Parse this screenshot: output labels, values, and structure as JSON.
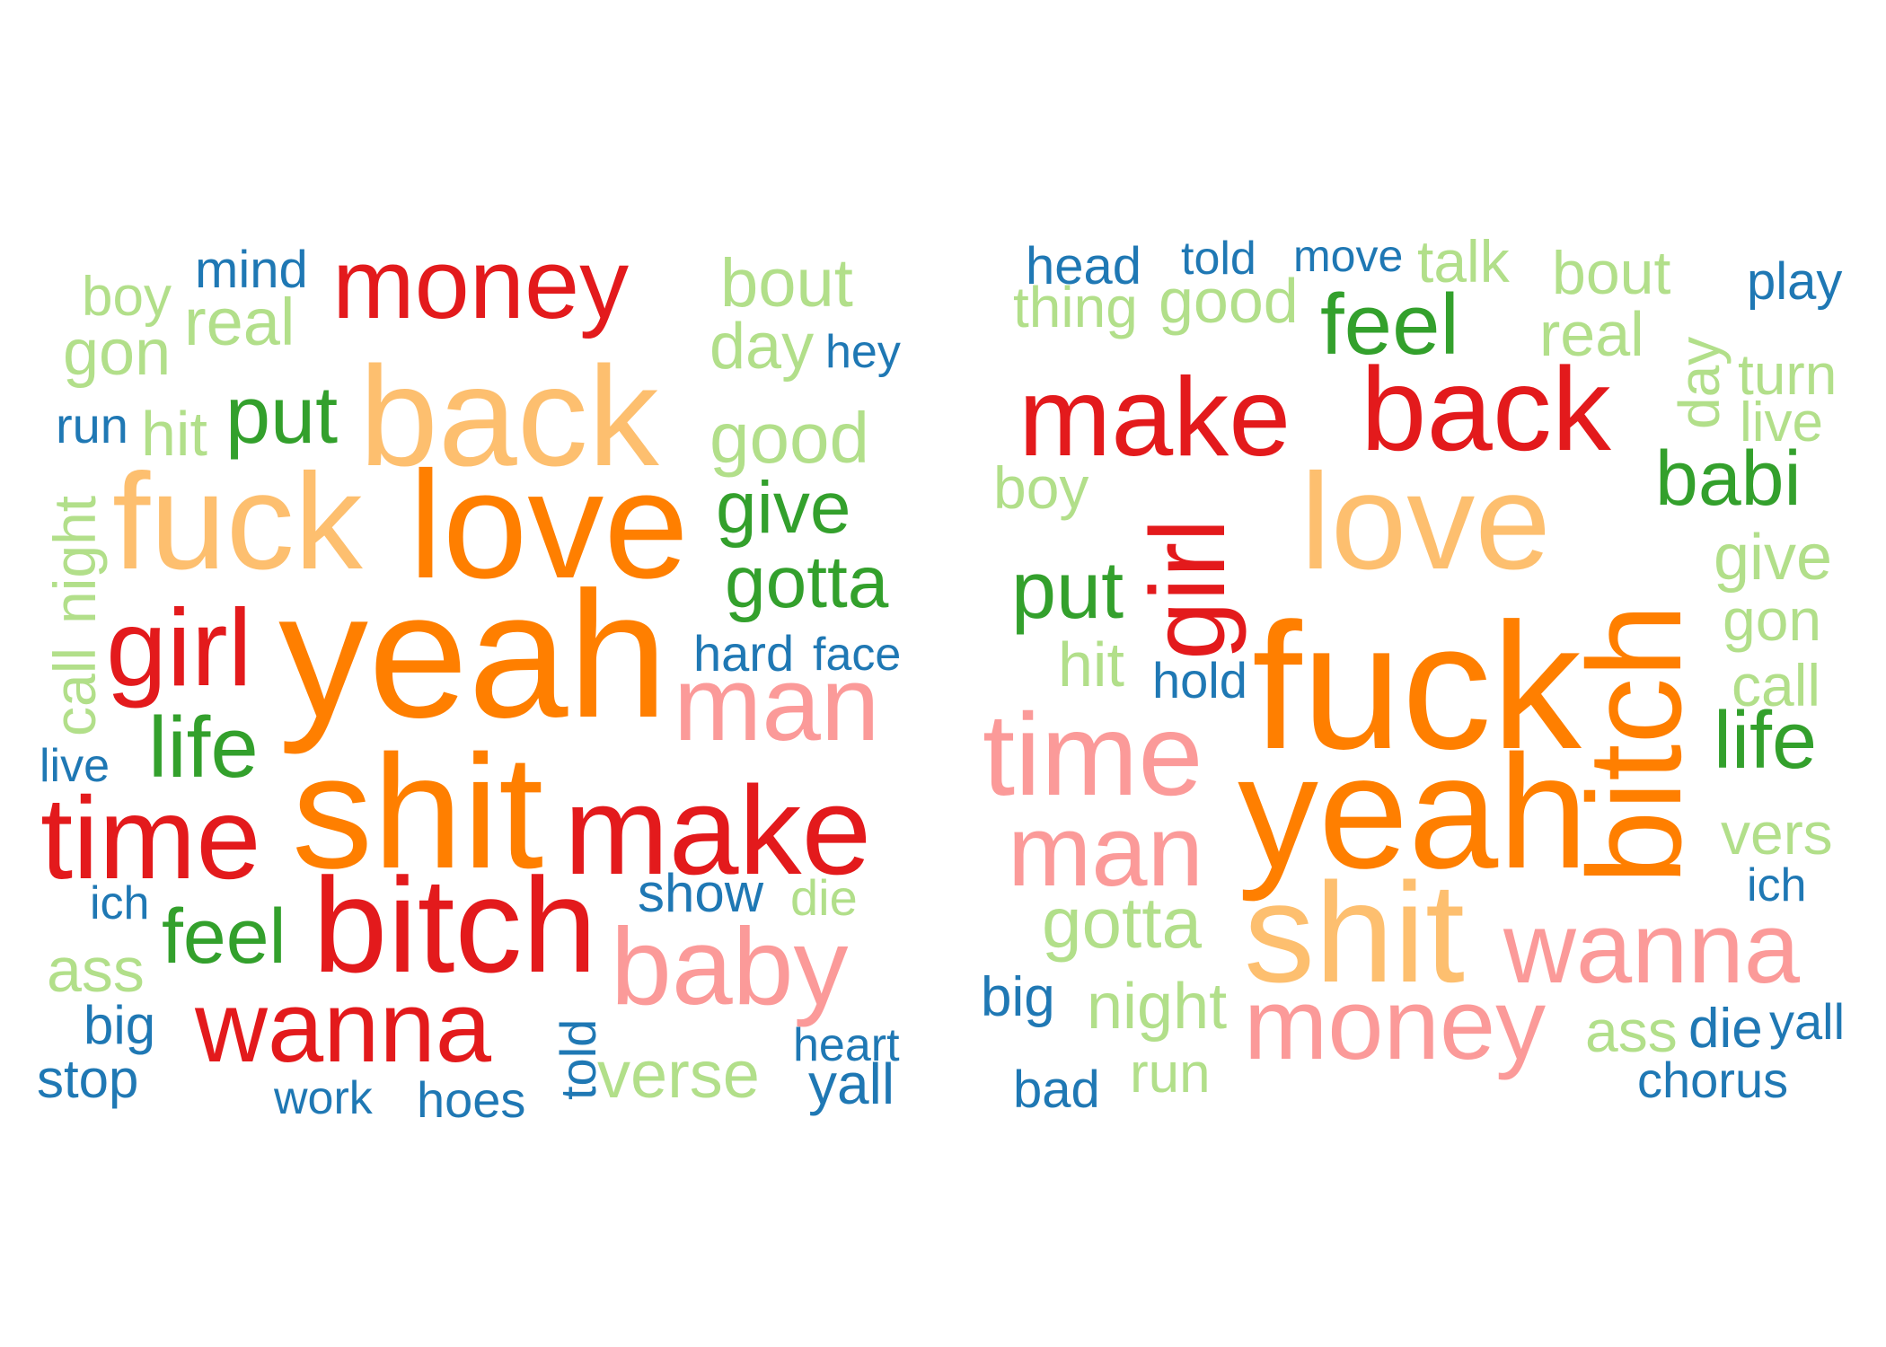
{
  "palette": {
    "dark_red": "#e31a1c",
    "orange": "#ff7f00",
    "light_orange": "#fdbf6f",
    "pink": "#fb9a99",
    "dark_green": "#33a02c",
    "light_green": "#b2df8a",
    "blue": "#1f78b4"
  },
  "left_cloud": {
    "words": [
      {
        "text": "boy",
        "color": "light_green"
      },
      {
        "text": "mind",
        "color": "blue"
      },
      {
        "text": "money",
        "color": "dark_red"
      },
      {
        "text": "bout",
        "color": "light_green"
      },
      {
        "text": "real",
        "color": "light_green"
      },
      {
        "text": "gon",
        "color": "light_green"
      },
      {
        "text": "day",
        "color": "light_green"
      },
      {
        "text": "hey",
        "color": "blue"
      },
      {
        "text": "run",
        "color": "blue"
      },
      {
        "text": "hit",
        "color": "light_green"
      },
      {
        "text": "put",
        "color": "dark_green"
      },
      {
        "text": "back",
        "color": "light_orange"
      },
      {
        "text": "good",
        "color": "light_green"
      },
      {
        "text": "fuck",
        "color": "light_orange"
      },
      {
        "text": "love",
        "color": "orange"
      },
      {
        "text": "give",
        "color": "dark_green"
      },
      {
        "text": "call",
        "color": "light_green"
      },
      {
        "text": "night",
        "color": "light_green"
      },
      {
        "text": "gotta",
        "color": "dark_green"
      },
      {
        "text": "girl",
        "color": "dark_red"
      },
      {
        "text": "yeah",
        "color": "orange"
      },
      {
        "text": "hard",
        "color": "blue"
      },
      {
        "text": "face",
        "color": "blue"
      },
      {
        "text": "man",
        "color": "pink"
      },
      {
        "text": "life",
        "color": "dark_green"
      },
      {
        "text": "live",
        "color": "blue"
      },
      {
        "text": "time",
        "color": "dark_red"
      },
      {
        "text": "shit",
        "color": "orange"
      },
      {
        "text": "make",
        "color": "dark_red"
      },
      {
        "text": "show",
        "color": "blue"
      },
      {
        "text": "die",
        "color": "light_green"
      },
      {
        "text": "ich",
        "color": "blue"
      },
      {
        "text": "feel",
        "color": "dark_green"
      },
      {
        "text": "bitch",
        "color": "dark_red"
      },
      {
        "text": "baby",
        "color": "pink"
      },
      {
        "text": "ass",
        "color": "light_green"
      },
      {
        "text": "big",
        "color": "blue"
      },
      {
        "text": "wanna",
        "color": "dark_red"
      },
      {
        "text": "told",
        "color": "blue"
      },
      {
        "text": "heart",
        "color": "blue"
      },
      {
        "text": "stop",
        "color": "blue"
      },
      {
        "text": "verse",
        "color": "light_green"
      },
      {
        "text": "yall",
        "color": "blue"
      },
      {
        "text": "work",
        "color": "blue"
      },
      {
        "text": "hoes",
        "color": "blue"
      }
    ]
  },
  "right_cloud": {
    "words": [
      {
        "text": "head",
        "color": "blue"
      },
      {
        "text": "told",
        "color": "blue"
      },
      {
        "text": "move",
        "color": "blue"
      },
      {
        "text": "talk",
        "color": "light_green"
      },
      {
        "text": "bout",
        "color": "light_green"
      },
      {
        "text": "play",
        "color": "blue"
      },
      {
        "text": "thing",
        "color": "light_green"
      },
      {
        "text": "good",
        "color": "light_green"
      },
      {
        "text": "feel",
        "color": "dark_green"
      },
      {
        "text": "real",
        "color": "light_green"
      },
      {
        "text": "day",
        "color": "light_green"
      },
      {
        "text": "turn",
        "color": "light_green"
      },
      {
        "text": "make",
        "color": "dark_red"
      },
      {
        "text": "back",
        "color": "dark_red"
      },
      {
        "text": "live",
        "color": "light_green"
      },
      {
        "text": "boy",
        "color": "light_green"
      },
      {
        "text": "babi",
        "color": "dark_green"
      },
      {
        "text": "love",
        "color": "light_orange"
      },
      {
        "text": "girl",
        "color": "dark_red"
      },
      {
        "text": "give",
        "color": "light_green"
      },
      {
        "text": "put",
        "color": "dark_green"
      },
      {
        "text": "bitch",
        "color": "orange"
      },
      {
        "text": "gon",
        "color": "light_green"
      },
      {
        "text": "hit",
        "color": "light_green"
      },
      {
        "text": "fuck",
        "color": "orange"
      },
      {
        "text": "hold",
        "color": "blue"
      },
      {
        "text": "call",
        "color": "light_green"
      },
      {
        "text": "time",
        "color": "pink"
      },
      {
        "text": "life",
        "color": "dark_green"
      },
      {
        "text": "yeah",
        "color": "orange"
      },
      {
        "text": "man",
        "color": "pink"
      },
      {
        "text": "vers",
        "color": "light_green"
      },
      {
        "text": "ich",
        "color": "blue"
      },
      {
        "text": "gotta",
        "color": "light_green"
      },
      {
        "text": "shit",
        "color": "light_orange"
      },
      {
        "text": "wanna",
        "color": "pink"
      },
      {
        "text": "big",
        "color": "blue"
      },
      {
        "text": "night",
        "color": "light_green"
      },
      {
        "text": "money",
        "color": "pink"
      },
      {
        "text": "ass",
        "color": "light_green"
      },
      {
        "text": "die",
        "color": "blue"
      },
      {
        "text": "yall",
        "color": "blue"
      },
      {
        "text": "run",
        "color": "light_green"
      },
      {
        "text": "bad",
        "color": "blue"
      },
      {
        "text": "chorus",
        "color": "blue"
      }
    ]
  }
}
